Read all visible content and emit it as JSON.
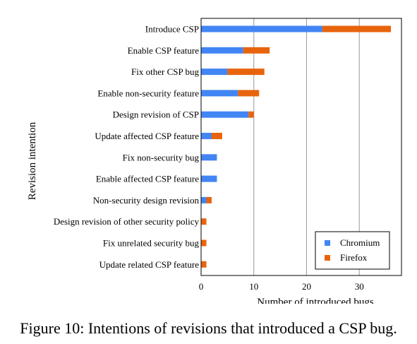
{
  "chart_data": {
    "type": "bar",
    "orientation": "horizontal",
    "stacked": true,
    "categories": [
      "Introduce CSP",
      "Enable CSP feature",
      "Fix other CSP bug",
      "Enable non-security feature",
      "Design revision of CSP",
      "Update affected CSP feature",
      "Fix non-security bug",
      "Enable affected CSP feature",
      "Non-security design revision",
      "Design revision of other security policy",
      "Fix unrelated security bug",
      "Update related CSP feature"
    ],
    "series": [
      {
        "name": "Chromium",
        "color": "#4285f4",
        "values": [
          23,
          8,
          5,
          7,
          9,
          2,
          3,
          3,
          1,
          0,
          0,
          0
        ]
      },
      {
        "name": "Firefox",
        "color": "#e8640c",
        "values": [
          13,
          5,
          7,
          4,
          1,
          2,
          0,
          0,
          1,
          1,
          1,
          1
        ]
      }
    ],
    "xlabel": "Number of introduced bugs",
    "ylabel": "Revision intention",
    "xlim": [
      0,
      38
    ],
    "xticks": [
      0,
      10,
      20,
      30
    ],
    "grid": "vertical",
    "legend_position": "bottom-right"
  },
  "caption": "Figure 10: Intentions of revisions that introduced a CSP bug."
}
